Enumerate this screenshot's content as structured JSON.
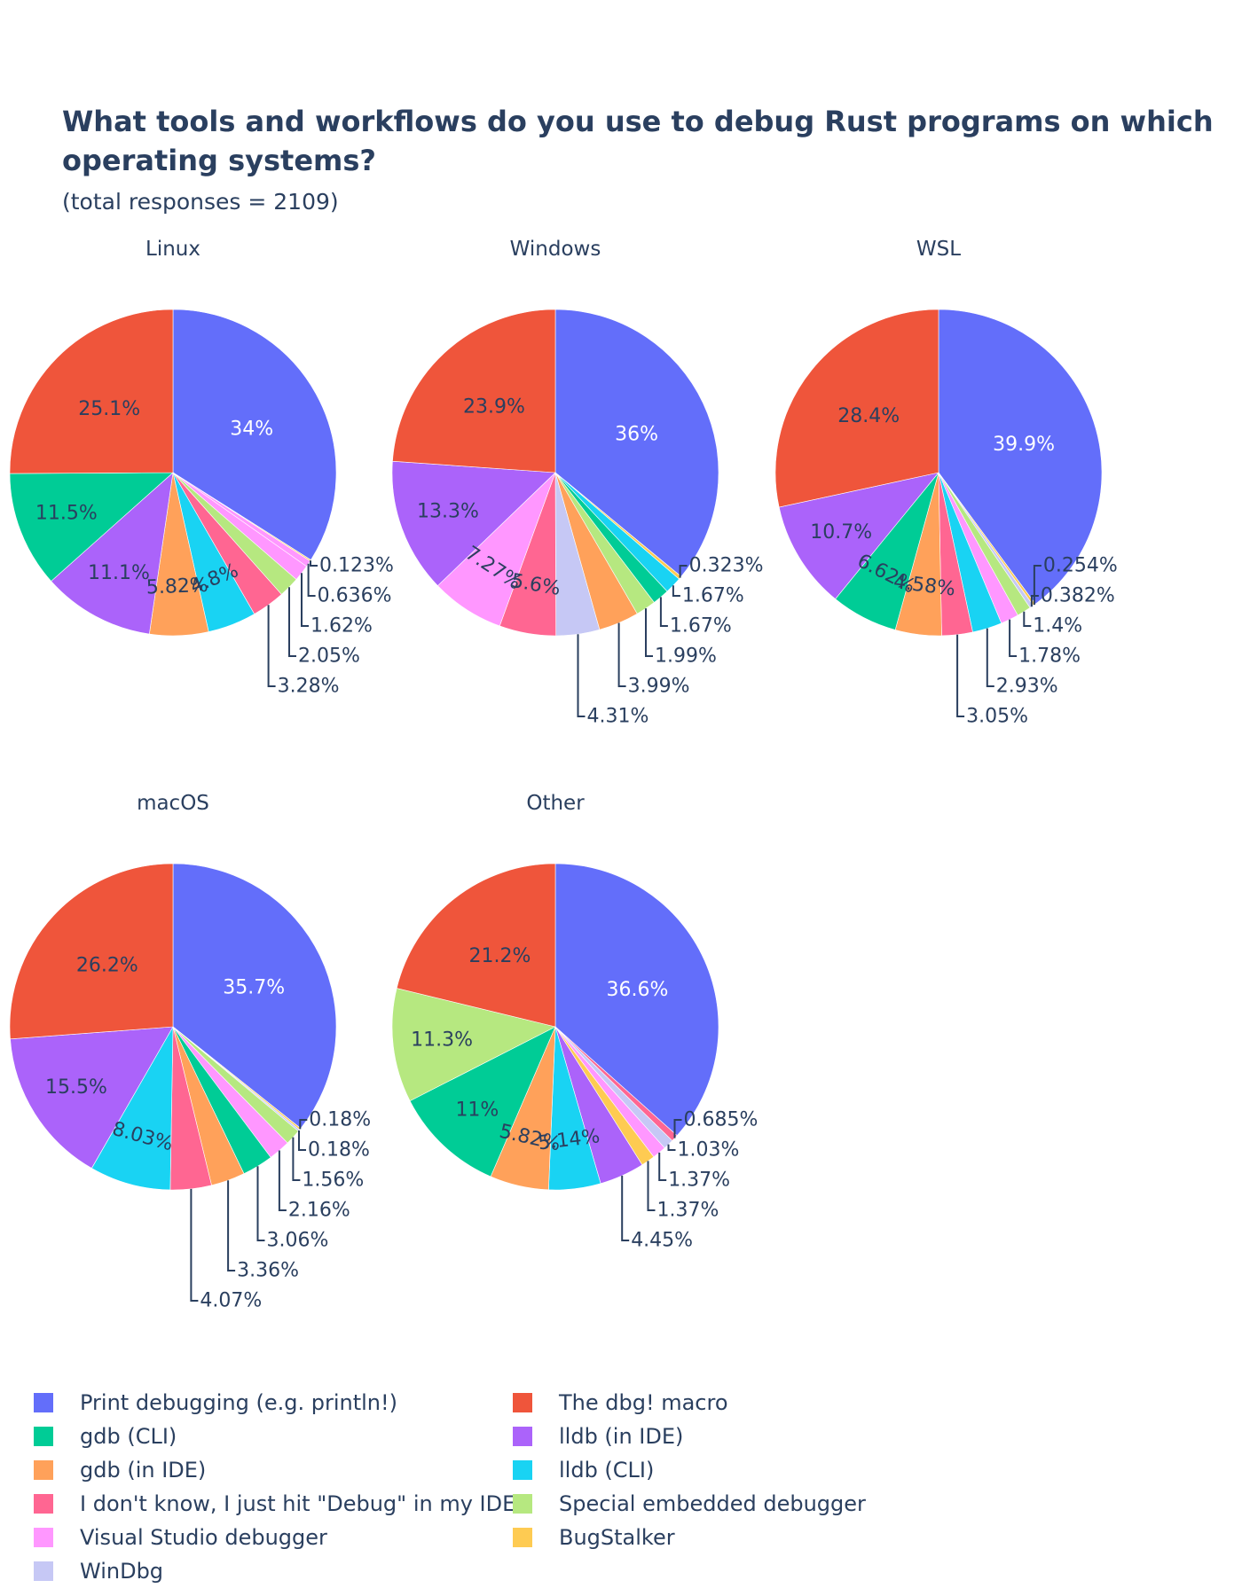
{
  "title_line1": "What tools and workflows do you use to debug Rust programs on which",
  "title_line2": "operating systems?",
  "subtitle": "(total responses = 2109)",
  "colors": {
    "print": "#636efa",
    "dbg": "#ef553b",
    "gdb_cli": "#00cc96",
    "lldb_ide": "#ab63fa",
    "gdb_ide": "#ffa15a",
    "lldb_cli": "#19d3f3",
    "dont_know": "#ff6692",
    "embedded": "#b6e880",
    "vs": "#ff97ff",
    "bugstalker": "#fecb52",
    "windbg": "#c6c8f5"
  },
  "legend": [
    {
      "key": "print",
      "label": "Print debugging (e.g. println!)"
    },
    {
      "key": "dbg",
      "label": "The dbg! macro"
    },
    {
      "key": "gdb_cli",
      "label": "gdb (CLI)"
    },
    {
      "key": "lldb_ide",
      "label": "lldb (in IDE)"
    },
    {
      "key": "gdb_ide",
      "label": "gdb (in IDE)"
    },
    {
      "key": "lldb_cli",
      "label": "lldb (CLI)"
    },
    {
      "key": "dont_know",
      "label": "I don't know, I just hit \"Debug\" in my IDE"
    },
    {
      "key": "embedded",
      "label": "Special embedded debugger"
    },
    {
      "key": "vs",
      "label": "Visual Studio debugger"
    },
    {
      "key": "bugstalker",
      "label": "BugStalker"
    },
    {
      "key": "windbg",
      "label": "WinDbg"
    }
  ],
  "chart_data": [
    {
      "type": "pie",
      "title": "Linux",
      "slices": [
        {
          "key": "print",
          "label": "34%",
          "value": 34.0
        },
        {
          "key": "bugstalker",
          "label": "0.123%",
          "value": 0.123
        },
        {
          "key": "vs",
          "label": "0.636%",
          "value": 0.636
        },
        {
          "key": "vs2",
          "label": "1.62%",
          "value": 1.62,
          "color_key": "vs"
        },
        {
          "key": "embedded",
          "label": "2.05%",
          "value": 2.05
        },
        {
          "key": "dont_know",
          "label": "3.28%",
          "value": 3.28
        },
        {
          "key": "lldb_cli",
          "label": "4.8%",
          "value": 4.8
        },
        {
          "key": "gdb_ide",
          "label": "5.82%",
          "value": 5.82
        },
        {
          "key": "lldb_ide",
          "label": "11.1%",
          "value": 11.1
        },
        {
          "key": "gdb_cli",
          "label": "11.5%",
          "value": 11.5
        },
        {
          "key": "dbg",
          "label": "25.1%",
          "value": 25.1
        }
      ]
    },
    {
      "type": "pie",
      "title": "Windows",
      "slices": [
        {
          "key": "print",
          "label": "36%",
          "value": 36.0
        },
        {
          "key": "bugstalker",
          "label": "0.323%",
          "value": 0.323
        },
        {
          "key": "lldb_cli",
          "label": "1.67%",
          "value": 1.67
        },
        {
          "key": "gdb_cli",
          "label": "1.67%",
          "value": 1.67
        },
        {
          "key": "embedded",
          "label": "1.99%",
          "value": 1.99
        },
        {
          "key": "gdb_ide",
          "label": "3.99%",
          "value": 3.99
        },
        {
          "key": "windbg",
          "label": "4.31%",
          "value": 4.31
        },
        {
          "key": "dont_know",
          "label": "5.6%",
          "value": 5.6
        },
        {
          "key": "vs",
          "label": "7.27%",
          "value": 7.27
        },
        {
          "key": "lldb_ide",
          "label": "13.3%",
          "value": 13.3
        },
        {
          "key": "dbg",
          "label": "23.9%",
          "value": 23.9
        }
      ]
    },
    {
      "type": "pie",
      "title": "WSL",
      "slices": [
        {
          "key": "print",
          "label": "39.9%",
          "value": 39.9
        },
        {
          "key": "bugstalker",
          "label": "0.254%",
          "value": 0.254
        },
        {
          "key": "windbg",
          "label": "0.382%",
          "value": 0.382
        },
        {
          "key": "embedded",
          "label": "1.4%",
          "value": 1.4
        },
        {
          "key": "vs",
          "label": "1.78%",
          "value": 1.78
        },
        {
          "key": "lldb_cli",
          "label": "2.93%",
          "value": 2.93
        },
        {
          "key": "dont_know",
          "label": "3.05%",
          "value": 3.05
        },
        {
          "key": "gdb_ide",
          "label": "4.58%",
          "value": 4.58
        },
        {
          "key": "gdb_cli",
          "label": "6.62%",
          "value": 6.62
        },
        {
          "key": "lldb_ide",
          "label": "10.7%",
          "value": 10.7
        },
        {
          "key": "dbg",
          "label": "28.4%",
          "value": 28.4
        }
      ]
    },
    {
      "type": "pie",
      "title": "macOS",
      "slices": [
        {
          "key": "print",
          "label": "35.7%",
          "value": 35.7
        },
        {
          "key": "bugstalker",
          "label": "0.18%",
          "value": 0.18
        },
        {
          "key": "windbg",
          "label": "0.18%",
          "value": 0.18
        },
        {
          "key": "embedded",
          "label": "1.56%",
          "value": 1.56
        },
        {
          "key": "vs",
          "label": "2.16%",
          "value": 2.16
        },
        {
          "key": "gdb_cli",
          "label": "3.06%",
          "value": 3.06
        },
        {
          "key": "gdb_ide",
          "label": "3.36%",
          "value": 3.36
        },
        {
          "key": "dont_know",
          "label": "4.07%",
          "value": 4.07
        },
        {
          "key": "lldb_cli",
          "label": "8.03%",
          "value": 8.03
        },
        {
          "key": "lldb_ide",
          "label": "15.5%",
          "value": 15.5
        },
        {
          "key": "dbg",
          "label": "26.2%",
          "value": 26.2
        }
      ]
    },
    {
      "type": "pie",
      "title": "Other",
      "slices": [
        {
          "key": "print",
          "label": "36.6%",
          "value": 36.6
        },
        {
          "key": "dont_know",
          "label": "0.685%",
          "value": 0.685
        },
        {
          "key": "windbg",
          "label": "1.03%",
          "value": 1.03
        },
        {
          "key": "vs",
          "label": "1.37%",
          "value": 1.37
        },
        {
          "key": "bugstalker",
          "label": "1.37%",
          "value": 1.37
        },
        {
          "key": "lldb_ide",
          "label": "4.45%",
          "value": 4.45
        },
        {
          "key": "lldb_cli",
          "label": "5.14%",
          "value": 5.14
        },
        {
          "key": "gdb_ide",
          "label": "5.82%",
          "value": 5.82
        },
        {
          "key": "gdb_cli",
          "label": "11%",
          "value": 11.0
        },
        {
          "key": "embedded",
          "label": "11.3%",
          "value": 11.3
        },
        {
          "key": "dbg",
          "label": "21.2%",
          "value": 21.2
        }
      ]
    }
  ]
}
